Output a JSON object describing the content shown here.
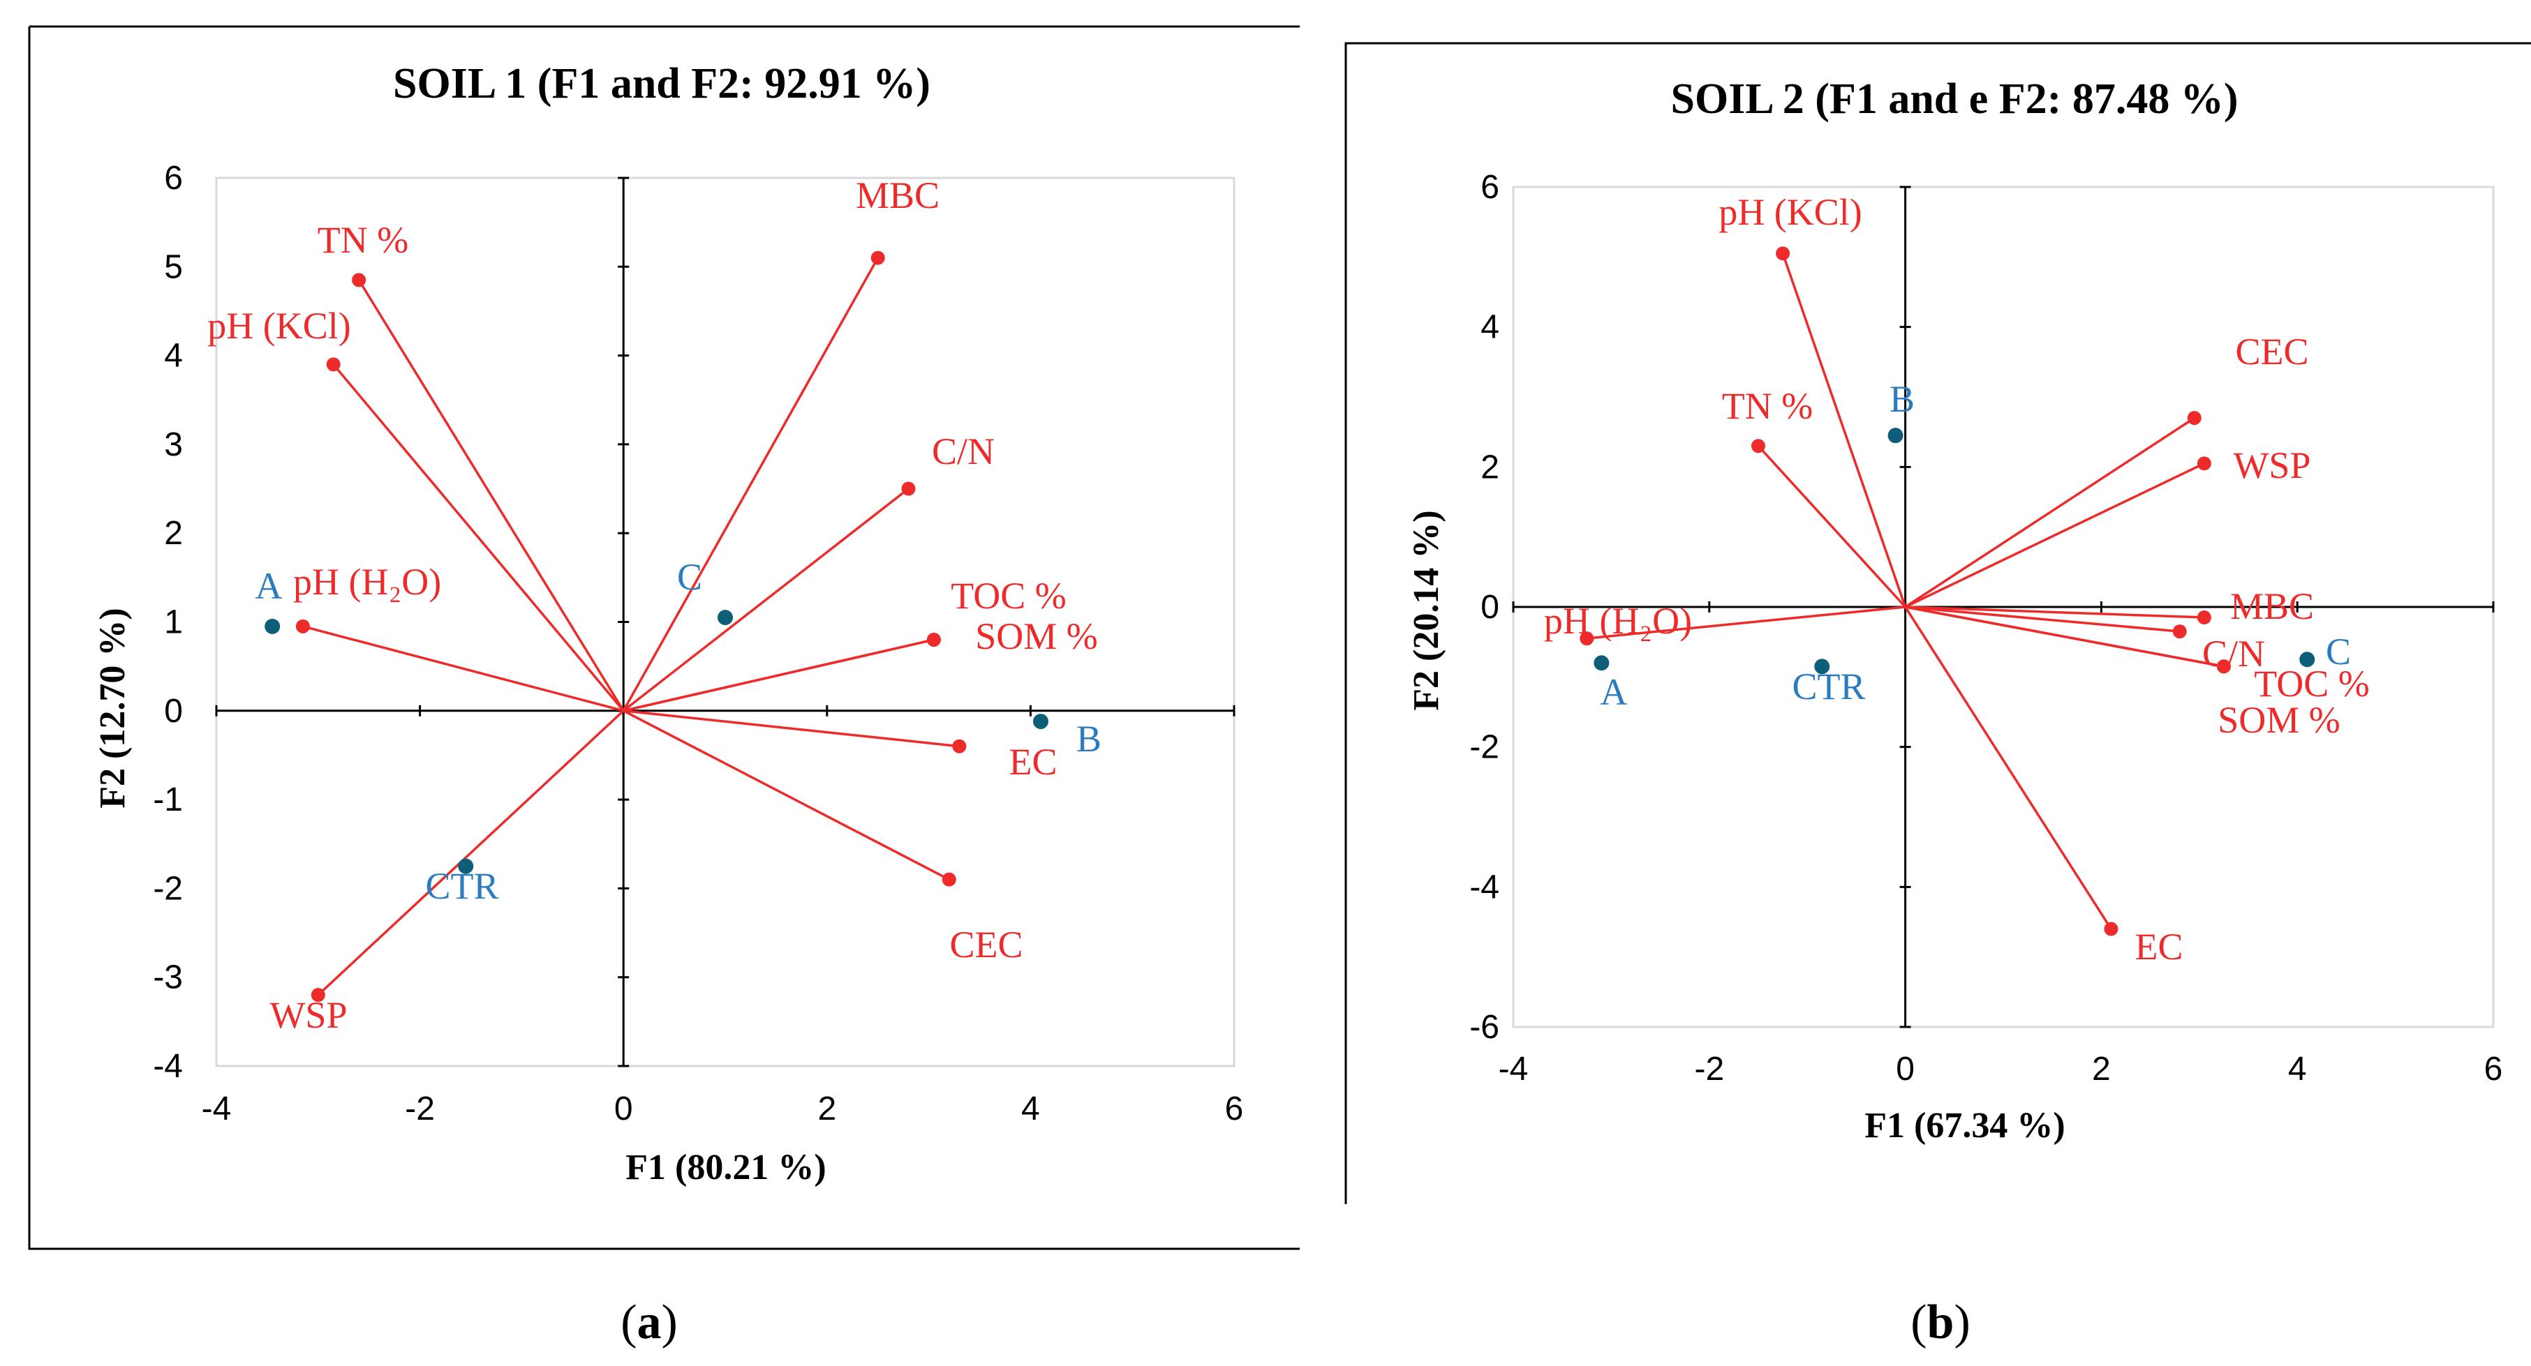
{
  "colors": {
    "variable": "#ee2b2b",
    "observation_marker": "#0d5f79",
    "observation_text": "#2b7bbf",
    "frame": "#000000",
    "plot_border": "#d9d9d9"
  },
  "panels": [
    {
      "label_open": "(",
      "label_letter": "a",
      "label_close": ")"
    },
    {
      "label_open": "(",
      "label_letter": "b",
      "label_close": ")"
    }
  ],
  "chart_data": [
    {
      "type": "scatter",
      "subtype": "pca-biplot",
      "title": "SOIL 1 (F1 and F2: 92.91 %)",
      "xlabel": "F1 (80.21 %)",
      "ylabel": "F2 (12.70 %)",
      "xlim": [
        -4,
        6
      ],
      "ylim": [
        -4,
        6
      ],
      "xticks": [
        -4,
        -2,
        0,
        2,
        4,
        6
      ],
      "yticks": [
        -4,
        -3,
        -2,
        -1,
        0,
        1,
        2,
        3,
        4,
        5,
        6
      ],
      "xtick_labels": [
        "-4",
        "-2",
        "0",
        "2",
        "4",
        "6"
      ],
      "ytick_labels": [
        "-4",
        "-3",
        "-2",
        "-1",
        "0",
        "1",
        "2",
        "3",
        "4",
        "5",
        "6"
      ],
      "variables": [
        {
          "name": "TN %",
          "x": -2.6,
          "y": 4.85
        },
        {
          "name": "pH (KCl)",
          "x": -2.85,
          "y": 3.9
        },
        {
          "name": "pH (H₂O)",
          "x": -3.15,
          "y": 0.95
        },
        {
          "name": "WSP",
          "x": -3.0,
          "y": -3.2
        },
        {
          "name": "MBC",
          "x": 2.5,
          "y": 5.1
        },
        {
          "name": "C/N",
          "x": 2.8,
          "y": 2.5
        },
        {
          "name": "TOC %",
          "x": 3.05,
          "y": 0.8
        },
        {
          "name": "SOM %",
          "x": 3.05,
          "y": 0.8
        },
        {
          "name": "EC",
          "x": 3.3,
          "y": -0.4
        },
        {
          "name": "CEC",
          "x": 3.2,
          "y": -1.9
        }
      ],
      "observations": [
        {
          "name": "A",
          "x": -3.45,
          "y": 0.95
        },
        {
          "name": "C",
          "x": 1.0,
          "y": 1.05
        },
        {
          "name": "B",
          "x": 4.1,
          "y": -0.12
        },
        {
          "name": "CTR",
          "x": -1.55,
          "y": -1.75
        }
      ]
    },
    {
      "type": "scatter",
      "subtype": "pca-biplot",
      "title": "SOIL 2 (F1 and e F2: 87.48 %)",
      "xlabel": "F1 (67.34 %)",
      "ylabel": "F2 (20.14 %)",
      "xlim": [
        -4,
        6
      ],
      "ylim": [
        -6,
        6
      ],
      "xticks": [
        -4,
        -2,
        0,
        2,
        4,
        6
      ],
      "yticks": [
        -6,
        -4,
        -2,
        0,
        2,
        4,
        6
      ],
      "xtick_labels": [
        "-4",
        "-2",
        "0",
        "2",
        "4",
        "6"
      ],
      "ytick_labels": [
        "-6",
        "-4",
        "-2",
        "0",
        "2",
        "4",
        "6"
      ],
      "variables": [
        {
          "name": "pH (KCl)",
          "x": -1.25,
          "y": 5.05
        },
        {
          "name": "TN %",
          "x": -1.5,
          "y": 2.3
        },
        {
          "name": "pH (H₂O)",
          "x": -3.25,
          "y": -0.45
        },
        {
          "name": "CEC",
          "x": 2.95,
          "y": 2.7
        },
        {
          "name": "WSP",
          "x": 3.05,
          "y": 2.05
        },
        {
          "name": "MBC",
          "x": 3.05,
          "y": -0.15
        },
        {
          "name": "C/N",
          "x": 2.8,
          "y": -0.35
        },
        {
          "name": "TOC %",
          "x": 3.25,
          "y": -0.85
        },
        {
          "name": "SOM %",
          "x": 3.25,
          "y": -0.85
        },
        {
          "name": "EC",
          "x": 2.1,
          "y": -4.6
        }
      ],
      "observations": [
        {
          "name": "B",
          "x": -0.1,
          "y": 2.45
        },
        {
          "name": "A",
          "x": -3.1,
          "y": -0.8
        },
        {
          "name": "CTR",
          "x": -0.85,
          "y": -0.85
        },
        {
          "name": "C",
          "x": 4.1,
          "y": -0.75
        }
      ]
    }
  ]
}
